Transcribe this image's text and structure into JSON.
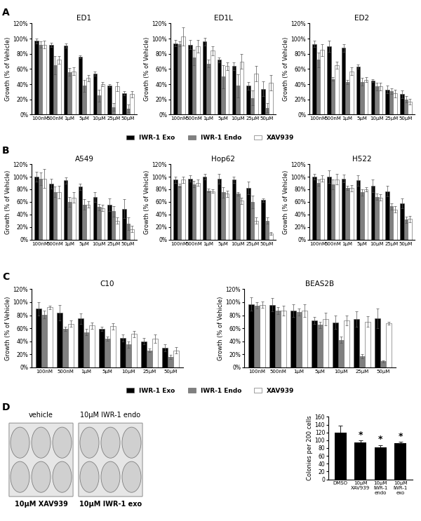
{
  "chart_data": [
    {
      "type": "bar",
      "panel": "A",
      "title": "ED1",
      "ylabel": "Growth (% of Vehicle)",
      "categories": [
        "100nM",
        "500nM",
        "1μM",
        "5μM",
        "10μM",
        "25μM",
        "50μM"
      ],
      "series": [
        {
          "name": "IWR-1 Exo",
          "color": "#000000",
          "values": [
            97,
            92,
            91,
            76,
            54,
            38,
            28
          ],
          "errors": [
            3,
            3,
            3,
            2,
            3,
            2,
            3
          ]
        },
        {
          "name": "IWR-1 Endo",
          "color": "#808080",
          "values": [
            92,
            65,
            56,
            38,
            25,
            10,
            8
          ],
          "errors": [
            4,
            12,
            5,
            8,
            8,
            5,
            5
          ]
        },
        {
          "name": "XAV939",
          "color": "#ffffff",
          "values": [
            92,
            72,
            57,
            48,
            40,
            37,
            27
          ],
          "errors": [
            5,
            5,
            5,
            4,
            3,
            6,
            4
          ]
        }
      ],
      "ylim": [
        0,
        120
      ],
      "yticks": [
        {
          "value": 0,
          "label": "0%"
        },
        {
          "value": 20,
          "label": "20%"
        },
        {
          "value": 40,
          "label": "40%"
        },
        {
          "value": 60,
          "label": "60%"
        },
        {
          "value": 80,
          "label": "80%"
        },
        {
          "value": 100,
          "label": "100%"
        },
        {
          "value": 120,
          "label": "120%"
        }
      ]
    },
    {
      "type": "bar",
      "title": "ED1L",
      "ylabel": "Growth (% of Vehicle)",
      "legend": "lower center",
      "categories": [
        "100nM",
        "500nM",
        "1μM",
        "5μM",
        "10μM",
        "25μM",
        "50μM"
      ],
      "series": [
        {
          "name": "IWR-1 Exo",
          "color": "#000000",
          "values": [
            94,
            92,
            96,
            72,
            64,
            38,
            34
          ],
          "errors": [
            4,
            6,
            5,
            3,
            5,
            5,
            10
          ]
        },
        {
          "name": "IWR-1 Endo",
          "color": "#808080",
          "values": [
            93,
            75,
            67,
            50,
            38,
            22,
            9
          ],
          "errors": [
            3,
            10,
            5,
            15,
            15,
            10,
            6
          ]
        },
        {
          "name": "XAV939",
          "color": "#ffffff",
          "values": [
            103,
            90,
            84,
            64,
            70,
            54,
            42
          ],
          "errors": [
            12,
            8,
            6,
            5,
            10,
            10,
            10
          ]
        }
      ],
      "ylim": [
        0,
        120
      ],
      "yticks": [
        {
          "value": 0,
          "label": "0%"
        },
        {
          "value": 20,
          "label": "20%"
        },
        {
          "value": 40,
          "label": "40%"
        },
        {
          "value": 60,
          "label": "60%"
        },
        {
          "value": 80,
          "label": "80%"
        },
        {
          "value": 100,
          "label": "100%"
        },
        {
          "value": 120,
          "label": "120%"
        }
      ]
    },
    {
      "type": "bar",
      "title": "ED2",
      "ylabel": "Growth (% of Vehicle)",
      "categories": [
        "100nM",
        "500nM",
        "1μM",
        "5μM",
        "10μM",
        "25μM",
        "50μM"
      ],
      "series": [
        {
          "name": "IWR-1 Exo",
          "color": "#000000",
          "values": [
            93,
            90,
            88,
            63,
            45,
            33,
            27
          ],
          "errors": [
            4,
            7,
            5,
            3,
            2,
            5,
            5
          ]
        },
        {
          "name": "IWR-1 Endo",
          "color": "#808080",
          "values": [
            72,
            47,
            43,
            43,
            37,
            31,
            20
          ],
          "errors": [
            10,
            2,
            3,
            5,
            5,
            4,
            4
          ]
        },
        {
          "name": "XAV939",
          "color": "#ffffff",
          "values": [
            85,
            65,
            57,
            46,
            37,
            28,
            17
          ],
          "errors": [
            8,
            5,
            5,
            3,
            5,
            5,
            4
          ]
        }
      ],
      "ylim": [
        0,
        120
      ],
      "yticks": [
        {
          "value": 0,
          "label": "0%"
        },
        {
          "value": 20,
          "label": "20%"
        },
        {
          "value": 40,
          "label": "40%"
        },
        {
          "value": 60,
          "label": "60%"
        },
        {
          "value": 80,
          "label": "80%"
        },
        {
          "value": 100,
          "label": "100%"
        },
        {
          "value": 120,
          "label": "120%"
        }
      ]
    },
    {
      "type": "bar",
      "panel": "B",
      "title": "A549",
      "ylabel": "Growth (% of Vehicle)",
      "categories": [
        "100nM",
        "500nM",
        "1μM",
        "5μM",
        "10μM",
        "25μM",
        "50μM"
      ],
      "series": [
        {
          "name": "IWR-1 Exo",
          "color": "#000000",
          "values": [
            100,
            89,
            94,
            84,
            68,
            55,
            49
          ],
          "errors": [
            8,
            8,
            5,
            5,
            8,
            10,
            15
          ]
        },
        {
          "name": "IWR-1 Endo",
          "color": "#808080",
          "values": [
            97,
            76,
            60,
            56,
            52,
            45,
            25
          ],
          "errors": [
            10,
            8,
            8,
            8,
            5,
            8,
            10
          ]
        },
        {
          "name": "XAV939",
          "color": "#ffffff",
          "values": [
            97,
            76,
            67,
            56,
            50,
            30,
            17
          ],
          "errors": [
            15,
            10,
            8,
            5,
            5,
            5,
            5
          ]
        }
      ],
      "ylim": [
        0,
        120
      ],
      "yticks": [
        {
          "value": 0,
          "label": "0%"
        },
        {
          "value": 20,
          "label": "20%"
        },
        {
          "value": 40,
          "label": "40%"
        },
        {
          "value": 60,
          "label": "60%"
        },
        {
          "value": 80,
          "label": "80%"
        },
        {
          "value": 100,
          "label": "100%"
        },
        {
          "value": 120,
          "label": "120%"
        }
      ]
    },
    {
      "type": "bar",
      "title": "Hop62",
      "ylabel": "Growth (% of Vehicle)",
      "categories": [
        "100nM",
        "500nM",
        "1μM",
        "5μM",
        "10μM",
        "25μM",
        "50μM"
      ],
      "series": [
        {
          "name": "IWR-1 Exo",
          "color": "#000000",
          "values": [
            95,
            97,
            100,
            97,
            95,
            82,
            63
          ],
          "errors": [
            5,
            5,
            5,
            8,
            5,
            10,
            3
          ]
        },
        {
          "name": "IWR-1 Endo",
          "color": "#808080",
          "values": [
            86,
            88,
            78,
            75,
            73,
            60,
            30
          ],
          "errors": [
            3,
            5,
            3,
            8,
            3,
            10,
            5
          ]
        },
        {
          "name": "XAV939",
          "color": "#ffffff",
          "values": [
            95,
            90,
            77,
            73,
            62,
            30,
            10
          ],
          "errors": [
            5,
            5,
            3,
            5,
            5,
            5,
            2
          ]
        }
      ],
      "ylim": [
        0,
        120
      ],
      "yticks": [
        {
          "value": 0,
          "label": "0%"
        },
        {
          "value": 20,
          "label": "20%"
        },
        {
          "value": 40,
          "label": "40%"
        },
        {
          "value": 60,
          "label": "60%"
        },
        {
          "value": 80,
          "label": "80%"
        },
        {
          "value": 100,
          "label": "100%"
        },
        {
          "value": 120,
          "label": "120%"
        }
      ]
    },
    {
      "type": "bar",
      "title": "H522",
      "ylabel": "Growth (% of Vehicle)",
      "categories": [
        "100nM",
        "500nM",
        "1μM",
        "5μM",
        "10μM",
        "25μM",
        "50μM"
      ],
      "series": [
        {
          "name": "IWR-1 Exo",
          "color": "#000000",
          "values": [
            100,
            100,
            97,
            94,
            85,
            77,
            58
          ],
          "errors": [
            5,
            10,
            6,
            8,
            10,
            8,
            8
          ]
        },
        {
          "name": "IWR-1 Endo",
          "color": "#808080",
          "values": [
            90,
            88,
            82,
            75,
            68,
            53,
            32
          ],
          "errors": [
            5,
            8,
            3,
            5,
            5,
            5,
            5
          ]
        },
        {
          "name": "XAV939",
          "color": "#ffffff",
          "values": [
            97,
            96,
            82,
            80,
            67,
            48,
            33
          ],
          "errors": [
            5,
            8,
            5,
            3,
            5,
            5,
            5
          ]
        }
      ],
      "ylim": [
        0,
        120
      ],
      "yticks": [
        {
          "value": 0,
          "label": "0%"
        },
        {
          "value": 20,
          "label": "20%"
        },
        {
          "value": 40,
          "label": "40%"
        },
        {
          "value": 60,
          "label": "60%"
        },
        {
          "value": 80,
          "label": "80%"
        },
        {
          "value": 100,
          "label": "100%"
        },
        {
          "value": 120,
          "label": "120%"
        }
      ]
    },
    {
      "type": "bar",
      "panel": "C",
      "title": "C10",
      "ylabel": "Growth (% of Vehicle)",
      "legend": "lower center",
      "categories": [
        "100nM",
        "500nM",
        "1μM",
        "5μM",
        "10μM",
        "25μM",
        "50μM"
      ],
      "series": [
        {
          "name": "IWR-1 Exo",
          "color": "#000000",
          "values": [
            90,
            84,
            75,
            59,
            45,
            40,
            30
          ],
          "errors": [
            10,
            12,
            8,
            3,
            5,
            5,
            5
          ]
        },
        {
          "name": "IWR-1 Endo",
          "color": "#808080",
          "values": [
            81,
            59,
            54,
            44,
            35,
            26,
            16
          ],
          "errors": [
            6,
            3,
            5,
            3,
            5,
            3,
            3
          ]
        },
        {
          "name": "XAV939",
          "color": "#ffffff",
          "values": [
            92,
            67,
            64,
            63,
            51,
            44,
            26
          ],
          "errors": [
            3,
            5,
            5,
            5,
            5,
            6,
            5
          ]
        }
      ],
      "ylim": [
        0,
        120
      ],
      "yticks": [
        {
          "value": 0,
          "label": "0%"
        },
        {
          "value": 20,
          "label": "20%"
        },
        {
          "value": 40,
          "label": "40%"
        },
        {
          "value": 60,
          "label": "60%"
        },
        {
          "value": 80,
          "label": "80%"
        },
        {
          "value": 100,
          "label": "100%"
        },
        {
          "value": 120,
          "label": "120%"
        }
      ]
    },
    {
      "type": "bar",
      "title": "BEAS2B",
      "ylabel": "Growth (% of Vehicle)",
      "categories": [
        "100nM",
        "500nM",
        "1μM",
        "5μM",
        "10μM",
        "25μM",
        "50μM"
      ],
      "series": [
        {
          "name": "IWR-1 Exo",
          "color": "#000000",
          "values": [
            97,
            96,
            87,
            72,
            69,
            74,
            75
          ],
          "errors": [
            10,
            10,
            10,
            5,
            10,
            12,
            15
          ]
        },
        {
          "name": "IWR-1 Endo",
          "color": "#808080",
          "values": [
            95,
            87,
            85,
            65,
            42,
            17,
            9
          ],
          "errors": [
            5,
            5,
            5,
            5,
            5,
            3,
            2
          ]
        },
        {
          "name": "XAV939",
          "color": "#ffffff",
          "values": [
            96,
            87,
            87,
            74,
            72,
            70,
            68
          ],
          "errors": [
            5,
            8,
            10,
            10,
            8,
            8,
            2
          ]
        }
      ],
      "ylim": [
        0,
        120
      ],
      "yticks": [
        {
          "value": 0,
          "label": "0%"
        },
        {
          "value": 20,
          "label": "20%"
        },
        {
          "value": 40,
          "label": "40%"
        },
        {
          "value": 60,
          "label": "60%"
        },
        {
          "value": 80,
          "label": "80%"
        },
        {
          "value": 100,
          "label": "100%"
        },
        {
          "value": 120,
          "label": "120%"
        }
      ]
    },
    {
      "type": "image",
      "panel": "D",
      "labels": [
        "vehicle",
        "10μM IWR-1 endo",
        "10μM XAV939",
        "10μM IWR-1 exo"
      ]
    },
    {
      "type": "bar",
      "ylabel": "Colonies per 200 cells",
      "categories": [
        "DMSO",
        "10μM XAV939",
        "10μM IWR-1 endo",
        "10μM IWR-1 exo"
      ],
      "values": [
        120,
        95,
        82,
        92
      ],
      "errors": [
        18,
        5,
        6,
        4
      ],
      "color": "#000000",
      "annotations": [
        null,
        "*",
        "*",
        "*"
      ],
      "ylim": [
        0,
        160
      ],
      "yticks": [
        0,
        20,
        40,
        60,
        80,
        100,
        120,
        140,
        160
      ]
    }
  ]
}
